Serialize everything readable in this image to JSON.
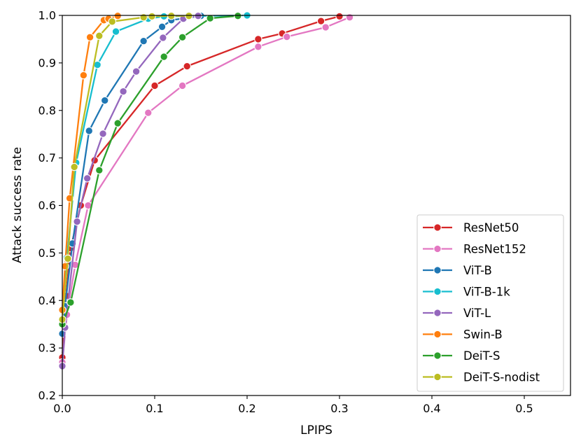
{
  "chart_data": {
    "type": "line",
    "title": "",
    "xlabel": "LPIPS",
    "ylabel": "Attack success rate",
    "xlim": [
      0.0,
      0.55
    ],
    "ylim": [
      0.2,
      1.0
    ],
    "xticks": [
      0.0,
      0.1,
      0.2,
      0.3,
      0.4,
      0.5
    ],
    "xtick_labels": [
      "0.0",
      "0.1",
      "0.2",
      "0.3",
      "0.4",
      "0.5"
    ],
    "yticks": [
      0.2,
      0.3,
      0.4,
      0.5,
      0.6,
      0.7,
      0.8,
      0.9,
      1.0
    ],
    "ytick_labels": [
      "0.2",
      "0.3",
      "0.4",
      "0.5",
      "0.6",
      "0.7",
      "0.8",
      "0.9",
      "1.0"
    ],
    "grid": false,
    "legend_position": "lower-right",
    "series": [
      {
        "name": "ResNet50",
        "color": "#d62728",
        "x": [
          0.0,
          0.004,
          0.009,
          0.02,
          0.035,
          0.1,
          0.135,
          0.212,
          0.238,
          0.28,
          0.3
        ],
        "y": [
          0.28,
          0.41,
          0.51,
          0.6,
          0.695,
          0.852,
          0.893,
          0.95,
          0.962,
          0.988,
          0.998
        ]
      },
      {
        "name": "ResNet152",
        "color": "#e377c2",
        "x": [
          0.0,
          0.005,
          0.014,
          0.028,
          0.093,
          0.13,
          0.212,
          0.243,
          0.285,
          0.311
        ],
        "y": [
          0.27,
          0.37,
          0.475,
          0.6,
          0.795,
          0.852,
          0.934,
          0.955,
          0.975,
          0.996
        ]
      },
      {
        "name": "ViT-B",
        "color": "#1f77b4",
        "x": [
          0.0,
          0.003,
          0.011,
          0.029,
          0.046,
          0.088,
          0.108,
          0.118,
          0.15
        ],
        "y": [
          0.33,
          0.388,
          0.52,
          0.757,
          0.821,
          0.946,
          0.976,
          0.99,
          0.999
        ]
      },
      {
        "name": "ViT-B-1k",
        "color": "#17becf",
        "x": [
          0.0,
          0.005,
          0.015,
          0.038,
          0.058,
          0.093,
          0.11,
          0.2
        ],
        "y": [
          0.38,
          0.49,
          0.69,
          0.896,
          0.966,
          0.993,
          0.998,
          1.0
        ]
      },
      {
        "name": "ViT-L",
        "color": "#9467bd",
        "x": [
          0.0,
          0.003,
          0.016,
          0.027,
          0.044,
          0.066,
          0.08,
          0.109,
          0.131,
          0.147
        ],
        "y": [
          0.262,
          0.343,
          0.566,
          0.657,
          0.751,
          0.84,
          0.882,
          0.953,
          0.993,
          0.999
        ]
      },
      {
        "name": "Swin-B",
        "color": "#ff7f0e",
        "x": [
          0.0,
          0.003,
          0.008,
          0.023,
          0.03,
          0.045,
          0.05,
          0.06
        ],
        "y": [
          0.38,
          0.472,
          0.615,
          0.874,
          0.954,
          0.99,
          0.993,
          0.999
        ]
      },
      {
        "name": "DeiT-S",
        "color": "#2ca02c",
        "x": [
          0.0,
          0.009,
          0.04,
          0.06,
          0.11,
          0.13,
          0.16,
          0.19
        ],
        "y": [
          0.35,
          0.396,
          0.674,
          0.773,
          0.913,
          0.954,
          0.994,
          0.999
        ]
      },
      {
        "name": "DeiT-S-nodist",
        "color": "#bcbd22",
        "x": [
          0.0,
          0.006,
          0.013,
          0.04,
          0.054,
          0.088,
          0.097,
          0.118,
          0.137
        ],
        "y": [
          0.36,
          0.488,
          0.681,
          0.957,
          0.987,
          0.996,
          0.998,
          0.999,
          0.999
        ]
      }
    ]
  }
}
